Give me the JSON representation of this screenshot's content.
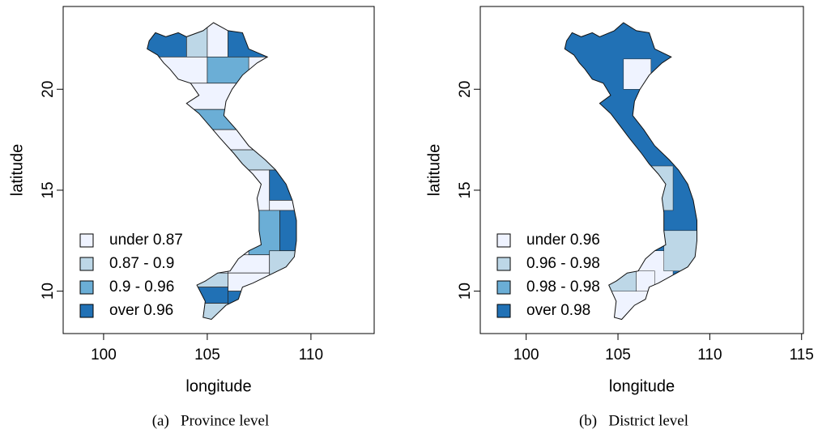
{
  "chart_data": [
    {
      "type": "map",
      "xlabel": "longitude",
      "ylabel": "latitude",
      "xlim": [
        98.05,
        113.05
      ],
      "ylim": [
        7.9,
        24.1
      ],
      "xticks": [
        100,
        105,
        110
      ],
      "yticks": [
        10,
        15,
        20
      ],
      "legend": {
        "labels": [
          "under 0.87",
          "0.87 - 0.9",
          "0.9 - 0.96",
          "over 0.96"
        ],
        "colors": [
          "#eff3ff",
          "#bdd7e7",
          "#6baed6",
          "#2171b5"
        ]
      },
      "caption": "(a)   Province level"
    },
    {
      "type": "map",
      "xlabel": "longitude",
      "ylabel": "latitude",
      "xlim": [
        97.5,
        115.1
      ],
      "ylim": [
        7.9,
        24.1
      ],
      "xticks": [
        100,
        105,
        110,
        115
      ],
      "yticks": [
        10,
        15,
        20
      ],
      "legend": {
        "labels": [
          "under 0.96",
          "0.96 - 0.98",
          "0.98 - 0.98",
          "over 0.98"
        ],
        "colors": [
          "#eff3ff",
          "#bdd7e7",
          "#6baed6",
          "#2171b5"
        ]
      },
      "caption": "(b)   District level"
    }
  ]
}
